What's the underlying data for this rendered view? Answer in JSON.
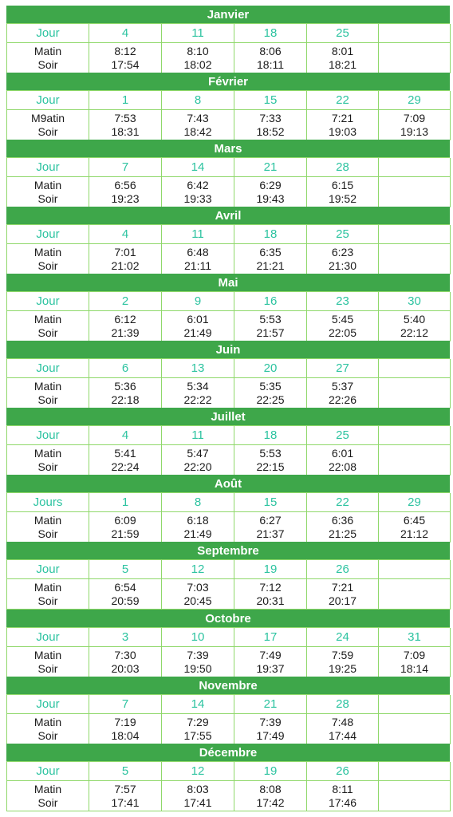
{
  "calendar": {
    "day_row_label": "Jour",
    "months": [
      {
        "name": "Janvier",
        "jour_label": "Jour",
        "matin_label": "Matin",
        "soir_label": "Soir",
        "columns": [
          {
            "day": "4",
            "matin": "8:12",
            "soir": "17:54"
          },
          {
            "day": "11",
            "matin": "8:10",
            "soir": "18:02"
          },
          {
            "day": "18",
            "matin": "8:06",
            "soir": "18:11"
          },
          {
            "day": "25",
            "matin": "8:01",
            "soir": "18:21"
          },
          {
            "day": "",
            "matin": "",
            "soir": ""
          }
        ]
      },
      {
        "name": "Février",
        "jour_label": "Jour",
        "matin_label": "M9atin",
        "soir_label": "Soir",
        "columns": [
          {
            "day": "1",
            "matin": "7:53",
            "soir": "18:31"
          },
          {
            "day": "8",
            "matin": "7:43",
            "soir": "18:42"
          },
          {
            "day": "15",
            "matin": "7:33",
            "soir": "18:52"
          },
          {
            "day": "22",
            "matin": "7:21",
            "soir": "19:03"
          },
          {
            "day": "29",
            "matin": "7:09",
            "soir": "19:13"
          }
        ]
      },
      {
        "name": "Mars",
        "jour_label": "Jour",
        "matin_label": "Matin",
        "soir_label": "Soir",
        "columns": [
          {
            "day": "7",
            "matin": "6:56",
            "soir": "19:23"
          },
          {
            "day": "14",
            "matin": "6:42",
            "soir": "19:33"
          },
          {
            "day": "21",
            "matin": "6:29",
            "soir": "19:43"
          },
          {
            "day": "28",
            "matin": "6:15",
            "soir": "19:52"
          },
          {
            "day": "",
            "matin": "",
            "soir": ""
          }
        ]
      },
      {
        "name": "Avril",
        "jour_label": "Jour",
        "matin_label": "Matin",
        "soir_label": "Soir",
        "columns": [
          {
            "day": "4",
            "matin": "7:01",
            "soir": "21:02"
          },
          {
            "day": "11",
            "matin": "6:48",
            "soir": "21:11"
          },
          {
            "day": "18",
            "matin": "6:35",
            "soir": "21:21"
          },
          {
            "day": "25",
            "matin": "6:23",
            "soir": "21:30"
          },
          {
            "day": "",
            "matin": "",
            "soir": ""
          }
        ]
      },
      {
        "name": "Mai",
        "jour_label": "Jour",
        "matin_label": "Matin",
        "soir_label": "Soir",
        "columns": [
          {
            "day": "2",
            "matin": "6:12",
            "soir": "21:39"
          },
          {
            "day": "9",
            "matin": "6:01",
            "soir": "21:49"
          },
          {
            "day": "16",
            "matin": "5:53",
            "soir": "21:57"
          },
          {
            "day": "23",
            "matin": "5:45",
            "soir": "22:05"
          },
          {
            "day": "30",
            "matin": "5:40",
            "soir": "22:12"
          }
        ]
      },
      {
        "name": "Juin",
        "jour_label": "Jour",
        "matin_label": "Matin",
        "soir_label": "Soir",
        "columns": [
          {
            "day": "6",
            "matin": "5:36",
            "soir": "22:18"
          },
          {
            "day": "13",
            "matin": "5:34",
            "soir": "22:22"
          },
          {
            "day": "20",
            "matin": "5:35",
            "soir": "22:25"
          },
          {
            "day": "27",
            "matin": "5:37",
            "soir": "22:26"
          },
          {
            "day": "",
            "matin": "",
            "soir": ""
          }
        ]
      },
      {
        "name": "Juillet",
        "jour_label": "Jour",
        "matin_label": "Matin",
        "soir_label": "Soir",
        "columns": [
          {
            "day": "4",
            "matin": "5:41",
            "soir": "22:24"
          },
          {
            "day": "11",
            "matin": "5:47",
            "soir": "22:20"
          },
          {
            "day": "18",
            "matin": "5:53",
            "soir": "22:15"
          },
          {
            "day": "25",
            "matin": "6:01",
            "soir": "22:08"
          },
          {
            "day": "",
            "matin": "",
            "soir": ""
          }
        ]
      },
      {
        "name": "Août",
        "jour_label": "Jours",
        "matin_label": "Matin",
        "soir_label": "Soir",
        "columns": [
          {
            "day": "1",
            "matin": "6:09",
            "soir": "21:59"
          },
          {
            "day": "8",
            "matin": "6:18",
            "soir": "21:49"
          },
          {
            "day": "15",
            "matin": "6:27",
            "soir": "21:37"
          },
          {
            "day": "22",
            "matin": "6:36",
            "soir": "21:25"
          },
          {
            "day": "29",
            "matin": "6:45",
            "soir": "21:12"
          }
        ]
      },
      {
        "name": "Septembre",
        "jour_label": "Jour",
        "matin_label": "Matin",
        "soir_label": "Soir",
        "columns": [
          {
            "day": "5",
            "matin": "6:54",
            "soir": "20:59"
          },
          {
            "day": "12",
            "matin": "7:03",
            "soir": "20:45"
          },
          {
            "day": "19",
            "matin": "7:12",
            "soir": "20:31"
          },
          {
            "day": "26",
            "matin": "7:21",
            "soir": "20:17"
          },
          {
            "day": "",
            "matin": "",
            "soir": ""
          }
        ]
      },
      {
        "name": "Octobre",
        "jour_label": "Jour",
        "matin_label": "Matin",
        "soir_label": "Soir",
        "columns": [
          {
            "day": "3",
            "matin": "7:30",
            "soir": "20:03"
          },
          {
            "day": "10",
            "matin": "7:39",
            "soir": "19:50"
          },
          {
            "day": "17",
            "matin": "7:49",
            "soir": "19:37"
          },
          {
            "day": "24",
            "matin": "7:59",
            "soir": "19:25"
          },
          {
            "day": "31",
            "matin": "7:09",
            "soir": "18:14"
          }
        ]
      },
      {
        "name": "Novembre",
        "jour_label": "Jour",
        "matin_label": "Matin",
        "soir_label": "Soir",
        "columns": [
          {
            "day": "7",
            "matin": "7:19",
            "soir": "18:04"
          },
          {
            "day": "14",
            "matin": "7:29",
            "soir": "17:55"
          },
          {
            "day": "21",
            "matin": "7:39",
            "soir": "17:49"
          },
          {
            "day": "28",
            "matin": "7:48",
            "soir": "17:44"
          },
          {
            "day": "",
            "matin": "",
            "soir": ""
          }
        ]
      },
      {
        "name": "Décembre",
        "jour_label": "Jour",
        "matin_label": "Matin",
        "soir_label": "Soir",
        "columns": [
          {
            "day": "5",
            "matin": "7:57",
            "soir": "17:41"
          },
          {
            "day": "12",
            "matin": "8:03",
            "soir": "17:41"
          },
          {
            "day": "19",
            "matin": "8:08",
            "soir": "17:42"
          },
          {
            "day": "26",
            "matin": "8:11",
            "soir": "17:46"
          },
          {
            "day": "",
            "matin": "",
            "soir": ""
          }
        ]
      }
    ]
  },
  "colors": {
    "header_bg": "#3ea74a",
    "header_text": "#ffffff",
    "day_text": "#2cc3a0",
    "grid_border": "#8fd86a",
    "body_text": "#1a1a1a"
  }
}
